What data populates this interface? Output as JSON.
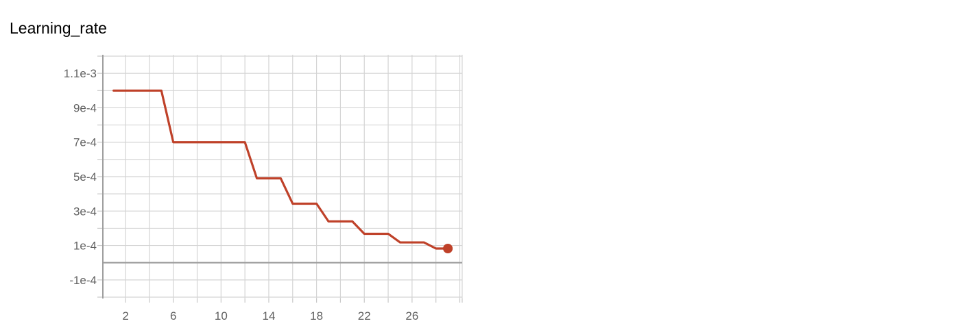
{
  "card": {
    "title": "Learning_rate"
  },
  "chart_data": {
    "type": "line",
    "title": "Learning_rate",
    "xlabel": "",
    "ylabel": "",
    "xlim": [
      0.1,
      30.2
    ],
    "ylim": [
      -0.000208,
      0.001208
    ],
    "x_ticks": [
      2,
      6,
      10,
      14,
      18,
      22,
      26
    ],
    "y_ticks": [
      {
        "value": 0.0011,
        "label": "1.1e-3"
      },
      {
        "value": 0.0009,
        "label": "9e-4"
      },
      {
        "value": 0.0007,
        "label": "7e-4"
      },
      {
        "value": 0.0005,
        "label": "5e-4"
      },
      {
        "value": 0.0003,
        "label": "3e-4"
      },
      {
        "value": 0.0001,
        "label": "1e-4"
      },
      {
        "value": -0.0001,
        "label": "-1e-4"
      }
    ],
    "x_grid_every": 2,
    "y_grid_every": 0.0001,
    "grid": true,
    "series": [
      {
        "color": "#bf4129",
        "x": [
          1,
          2,
          3,
          4,
          5,
          6,
          7,
          8,
          9,
          10,
          11,
          12,
          13,
          14,
          15,
          16,
          17,
          18,
          19,
          20,
          21,
          22,
          23,
          24,
          25,
          26,
          27,
          28,
          29
        ],
        "y": [
          0.001,
          0.001,
          0.001,
          0.001,
          0.001,
          0.0007,
          0.0007,
          0.0007,
          0.0007,
          0.0007,
          0.0007,
          0.0007,
          0.00049,
          0.00049,
          0.00049,
          0.000343,
          0.000343,
          0.000343,
          0.00024,
          0.00024,
          0.00024,
          0.000168,
          0.000168,
          0.000168,
          0.000118,
          0.000118,
          0.000118,
          8.24e-05,
          8.24e-05
        ]
      }
    ]
  }
}
